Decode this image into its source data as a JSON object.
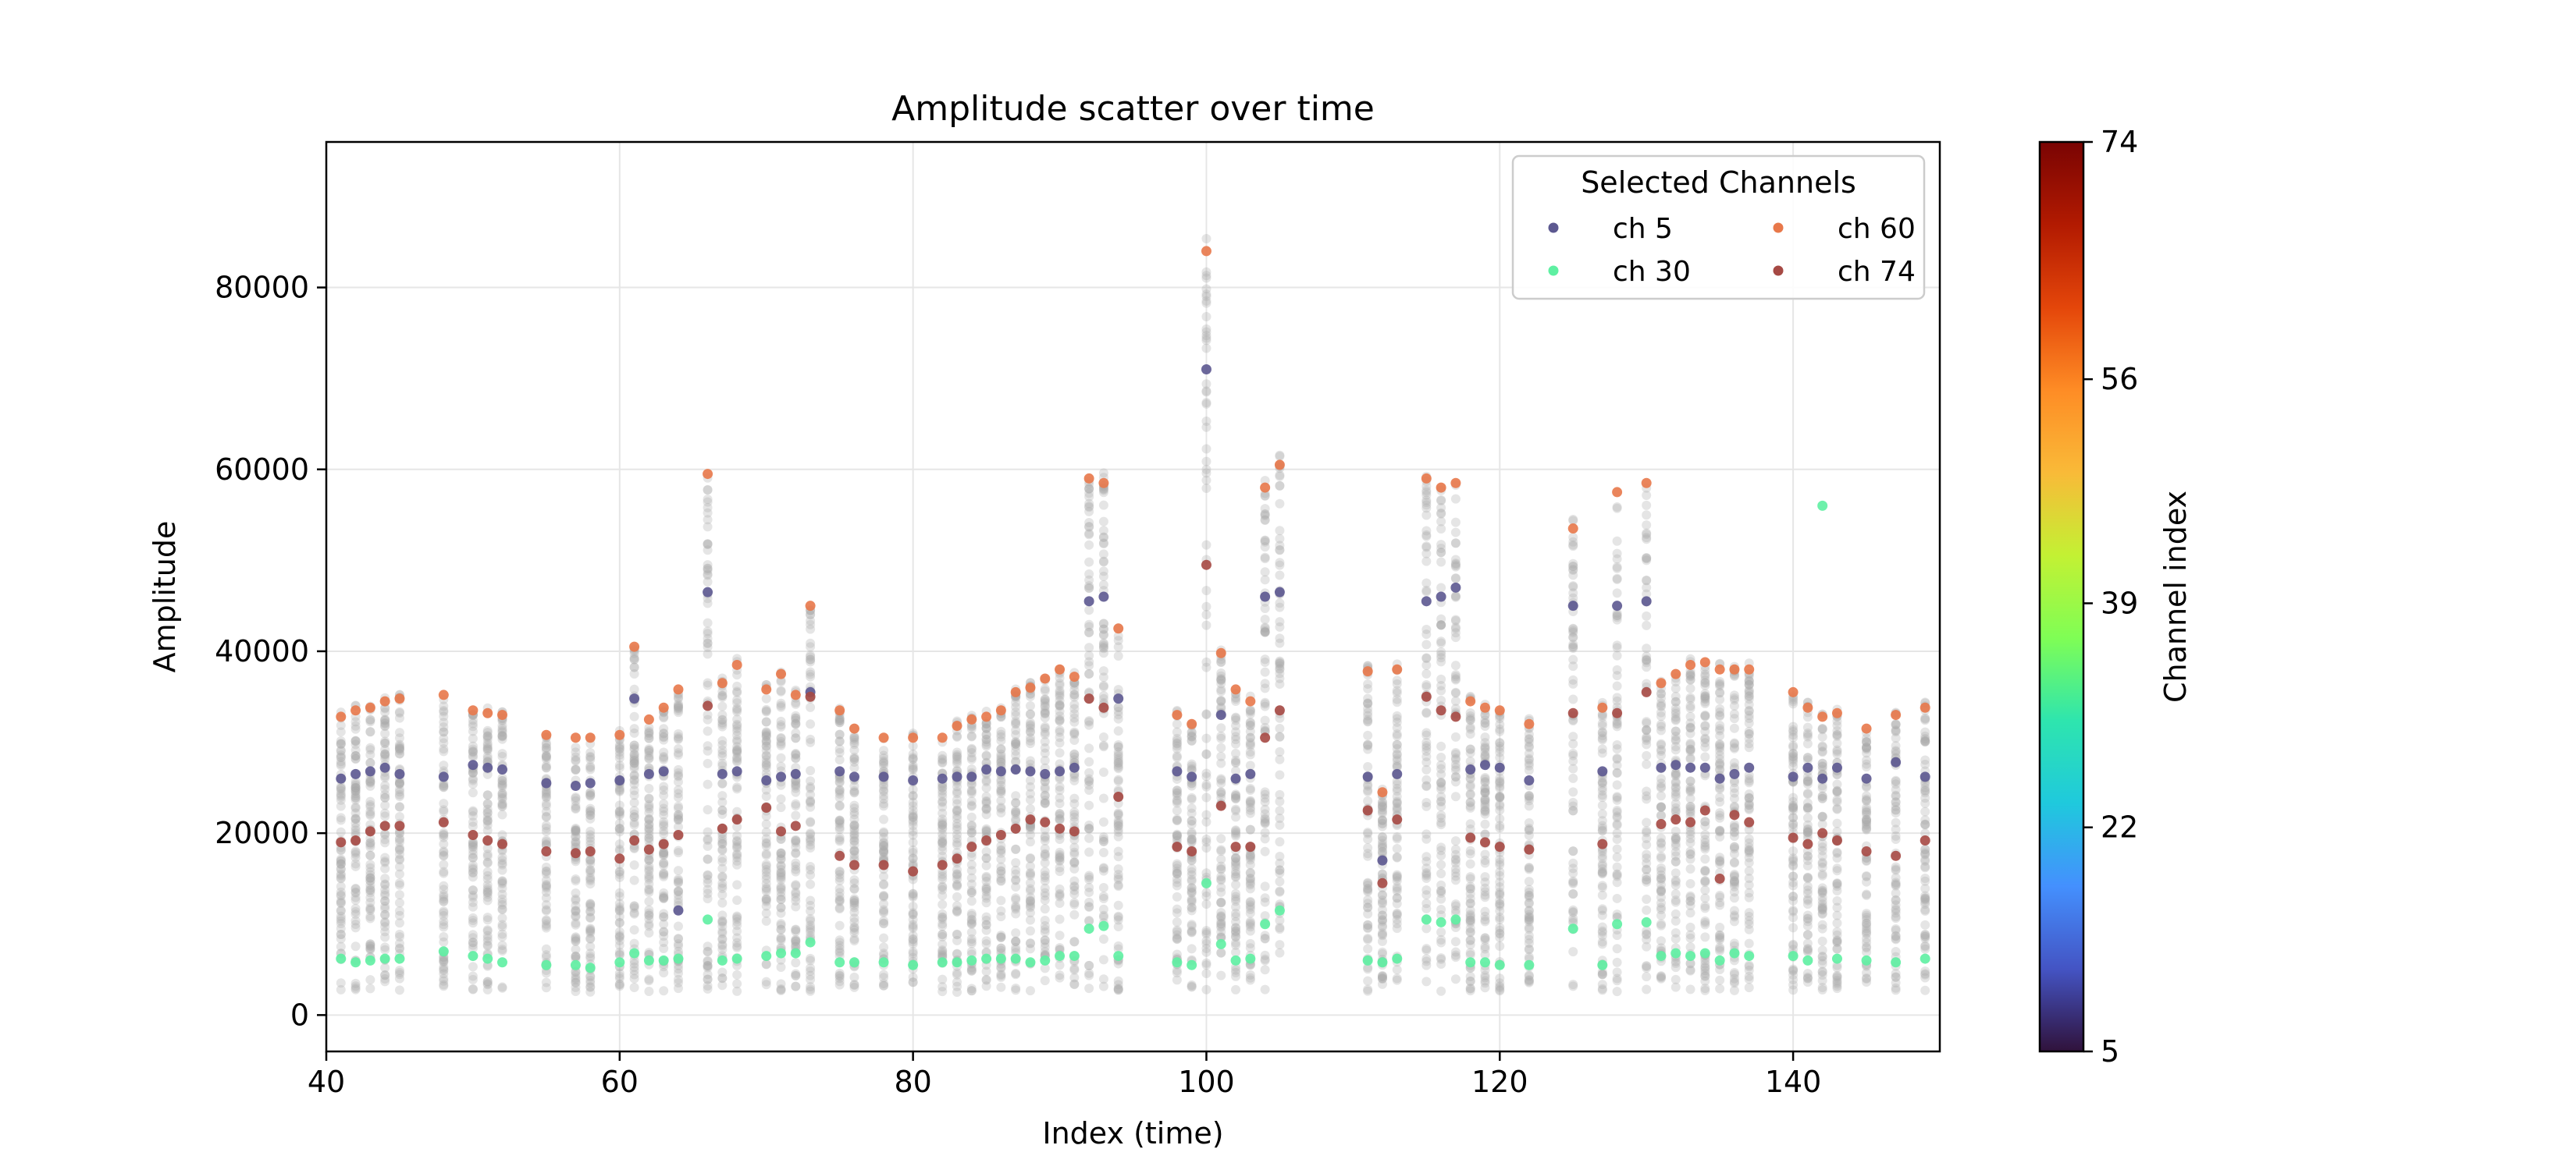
{
  "chart_data": {
    "type": "scatter",
    "title": "Amplitude scatter over time",
    "xlabel": "Index (time)",
    "ylabel": "Amplitude",
    "xlim": [
      40,
      150
    ],
    "ylim": [
      -4000,
      96000
    ],
    "xticks": [
      40,
      60,
      80,
      100,
      120,
      140
    ],
    "yticks": [
      0,
      20000,
      40000,
      60000,
      80000
    ],
    "grid": true,
    "legend": {
      "title": "Selected Channels",
      "placement": "top-right",
      "entries": [
        "ch 5",
        "ch 30",
        "ch 60",
        "ch 74"
      ]
    },
    "colorbar": {
      "label": "Channel index",
      "range": [
        5,
        74
      ],
      "ticks": [
        5,
        22,
        39,
        56,
        74
      ],
      "colormap": "turbo"
    },
    "background_channels": {
      "color": "#a8a8a8",
      "count_per_time": 70
    },
    "x": [
      41,
      42,
      43,
      44,
      45,
      48,
      50,
      51,
      52,
      55,
      57,
      58,
      60,
      61,
      62,
      63,
      64,
      66,
      67,
      68,
      70,
      71,
      72,
      73,
      75,
      76,
      78,
      80,
      82,
      83,
      84,
      85,
      86,
      87,
      88,
      89,
      90,
      91,
      92,
      93,
      94,
      98,
      99,
      100,
      101,
      102,
      103,
      104,
      105,
      111,
      112,
      113,
      115,
      116,
      117,
      118,
      119,
      120,
      122,
      125,
      127,
      128,
      130,
      131,
      132,
      133,
      134,
      135,
      136,
      137,
      140,
      141,
      142,
      143,
      145,
      147,
      149
    ],
    "series": [
      {
        "name": "ch 5",
        "color": "#5c5890",
        "values": [
          26000,
          26500,
          26800,
          27200,
          26500,
          26200,
          27500,
          27200,
          27000,
          25500,
          25200,
          25500,
          25800,
          34800,
          26500,
          26800,
          11500,
          46500,
          26500,
          26800,
          25800,
          26200,
          26500,
          35500,
          26800,
          26200,
          26200,
          25800,
          26000,
          26200,
          26200,
          27000,
          26800,
          27000,
          26800,
          26500,
          26800,
          27200,
          45500,
          46000,
          34800,
          26800,
          26200,
          71000,
          33000,
          26000,
          26500,
          46000,
          46500,
          26200,
          17000,
          26500,
          45500,
          46000,
          47000,
          27000,
          27500,
          27200,
          25800,
          45000,
          26800,
          45000,
          45500,
          27200,
          27500,
          27200,
          27200,
          26000,
          26500,
          27200,
          26200,
          27200,
          26000,
          27200,
          26000,
          27800,
          26200
        ]
      },
      {
        "name": "ch 30",
        "color": "#5ef0a2",
        "values": [
          6200,
          5800,
          6000,
          6200,
          6200,
          7000,
          6500,
          6200,
          5800,
          5500,
          5500,
          5200,
          5800,
          6800,
          6000,
          6000,
          6200,
          10500,
          6000,
          6200,
          6500,
          6800,
          6800,
          8000,
          5800,
          5800,
          5800,
          5500,
          5800,
          5800,
          6000,
          6200,
          6200,
          6200,
          5800,
          6000,
          6500,
          6500,
          9500,
          9800,
          6500,
          5800,
          5500,
          14500,
          7800,
          6000,
          6200,
          10000,
          11500,
          6000,
          5800,
          6200,
          10500,
          10200,
          10500,
          5800,
          5800,
          5500,
          5500,
          9500,
          5500,
          10000,
          10200,
          6500,
          6800,
          6500,
          6800,
          6000,
          6800,
          6500,
          6500,
          6000,
          56000,
          6200,
          6000,
          5800,
          6200
        ]
      },
      {
        "name": "ch 60",
        "color": "#e8784a",
        "values": [
          32800,
          33500,
          33800,
          34500,
          34800,
          35200,
          33500,
          33200,
          33000,
          30800,
          30500,
          30500,
          30800,
          40500,
          32500,
          33800,
          35800,
          59500,
          36500,
          38500,
          35800,
          37500,
          35200,
          45000,
          33500,
          31500,
          30500,
          30500,
          30500,
          31800,
          32500,
          32800,
          33500,
          35500,
          36000,
          37000,
          38000,
          37200,
          59000,
          58500,
          42500,
          33000,
          32000,
          84000,
          39800,
          35800,
          34500,
          58000,
          60500,
          37800,
          24500,
          38000,
          59000,
          58000,
          58500,
          34500,
          33800,
          33500,
          32000,
          53500,
          33800,
          57500,
          58500,
          36500,
          37500,
          38500,
          38800,
          38000,
          38000,
          38000,
          35500,
          33800,
          32800,
          33200,
          31500,
          33000,
          33800
        ]
      },
      {
        "name": "ch 74",
        "color": "#a64944",
        "values": [
          19000,
          19200,
          20200,
          20800,
          20800,
          21200,
          19800,
          19200,
          18800,
          18000,
          17800,
          18000,
          17200,
          19200,
          18200,
          18800,
          19800,
          34000,
          20500,
          21500,
          22800,
          20200,
          20800,
          35000,
          17500,
          16500,
          16500,
          15800,
          16500,
          17200,
          18500,
          19200,
          19800,
          20500,
          21500,
          21200,
          20500,
          20200,
          34800,
          33800,
          24000,
          18500,
          18000,
          49500,
          23000,
          18500,
          18500,
          30500,
          33500,
          22500,
          14500,
          21500,
          35000,
          33500,
          32800,
          19500,
          19000,
          18500,
          18200,
          33200,
          18800,
          33200,
          35500,
          21000,
          21500,
          21200,
          22500,
          15000,
          22000,
          21200,
          19500,
          18800,
          20000,
          19200,
          18000,
          17500,
          19200
        ]
      }
    ]
  }
}
